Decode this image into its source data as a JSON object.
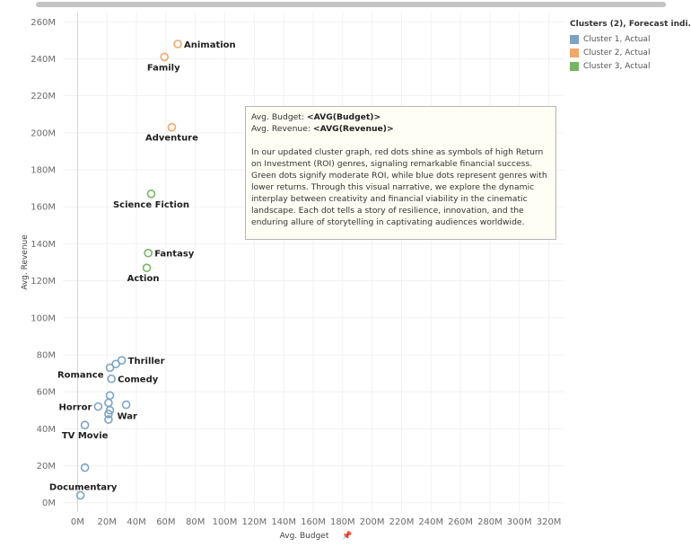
{
  "chart_data": {
    "type": "scatter",
    "xlabel": "Avg. Budget",
    "ylabel": "Avg. Revenue",
    "xlim": [
      -10,
      330
    ],
    "ylim": [
      -5,
      265
    ],
    "x_ticks": [
      0,
      20,
      40,
      60,
      80,
      100,
      120,
      140,
      160,
      180,
      200,
      220,
      240,
      260,
      280,
      300,
      320
    ],
    "x_tick_labels": [
      "0M",
      "20M",
      "40M",
      "60M",
      "80M",
      "100M",
      "120M",
      "140M",
      "160M",
      "180M",
      "200M",
      "220M",
      "240M",
      "260M",
      "280M",
      "300M",
      "320M"
    ],
    "y_ticks": [
      0,
      20,
      40,
      60,
      80,
      100,
      120,
      140,
      160,
      180,
      200,
      220,
      240,
      260
    ],
    "y_tick_labels": [
      "0M",
      "20M",
      "40M",
      "60M",
      "80M",
      "100M",
      "120M",
      "140M",
      "160M",
      "180M",
      "200M",
      "220M",
      "240M",
      "260M"
    ],
    "grid": true,
    "legend_position": "top-right",
    "legend_title": "Clusters (2), Forecast indi..",
    "series": [
      {
        "name": "Cluster 1, Actual",
        "color": "#7ba3c4",
        "points": [
          {
            "x": 2,
            "y": 4,
            "label": "Documentary"
          },
          {
            "x": 5,
            "y": 19,
            "label": ""
          },
          {
            "x": 5,
            "y": 42,
            "label": "TV Movie"
          },
          {
            "x": 14,
            "y": 52,
            "label": "Horror"
          },
          {
            "x": 21,
            "y": 45,
            "label": ""
          },
          {
            "x": 21,
            "y": 48,
            "label": ""
          },
          {
            "x": 22,
            "y": 50,
            "label": ""
          },
          {
            "x": 21,
            "y": 54,
            "label": ""
          },
          {
            "x": 22,
            "y": 58,
            "label": ""
          },
          {
            "x": 33,
            "y": 53,
            "label": "War"
          },
          {
            "x": 23,
            "y": 67,
            "label": "Comedy"
          },
          {
            "x": 22,
            "y": 73,
            "label": "Romance"
          },
          {
            "x": 26,
            "y": 75,
            "label": ""
          },
          {
            "x": 30,
            "y": 77,
            "label": "Thriller"
          }
        ]
      },
      {
        "name": "Cluster 2, Actual",
        "color": "#f0a868",
        "points": [
          {
            "x": 59,
            "y": 241,
            "label": "Family"
          },
          {
            "x": 68,
            "y": 248,
            "label": "Animation"
          },
          {
            "x": 64,
            "y": 203,
            "label": "Adventure"
          }
        ]
      },
      {
        "name": "Cluster 3, Actual",
        "color": "#77b566",
        "points": [
          {
            "x": 50,
            "y": 167,
            "label": "Science Fiction"
          },
          {
            "x": 48,
            "y": 135,
            "label": "Fantasy"
          },
          {
            "x": 47,
            "y": 127,
            "label": "Action"
          }
        ]
      }
    ]
  },
  "tooltip": {
    "line1_label": "Avg. Budget:",
    "line1_value": "<AVG(Budget)>",
    "line2_label": "Avg. Revenue:",
    "line2_value": "<AVG(Revenue)>",
    "description": "In our updated cluster graph, red dots shine as symbols of high Return on Investment (ROI) genres, signaling remarkable financial success. Green dots signify moderate ROI, while blue dots represent genres with lower returns. Through this visual narrative, we explore the dynamic interplay between creativity and financial viability in the cinematic landscape. Each dot tells a story of resilience, innovation, and the enduring allure of storytelling in captivating audiences worldwide."
  },
  "x_axis_pin_icon": "pin-icon"
}
